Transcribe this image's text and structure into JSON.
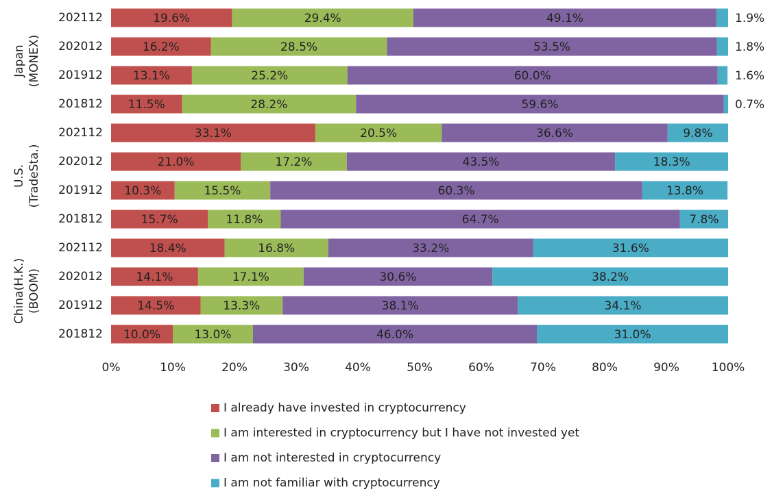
{
  "chart_data": {
    "type": "stacked_bar_horizontal",
    "groups": [
      [
        "Japan",
        "(MONEX)"
      ],
      [
        "U.S.",
        "(TradeSta.)"
      ],
      [
        "China(H.K.)",
        "(BOOM)"
      ]
    ],
    "categories": [
      "202112",
      "202012",
      "201912",
      "201812",
      "202112",
      "202012",
      "201912",
      "201812",
      "202112",
      "202012",
      "201912",
      "201812"
    ],
    "series": [
      {
        "name": "I already have invested in cryptocurrency",
        "color": "#c0504d",
        "values": [
          19.6,
          16.2,
          13.1,
          11.5,
          33.1,
          21.0,
          10.3,
          15.7,
          18.4,
          14.1,
          14.5,
          10.0
        ],
        "value_labels": [
          "19.6%",
          "16.2%",
          "13.1%",
          "11.5%",
          "33.1%",
          "21.0%",
          "10.3%",
          "15.7%",
          "18.4%",
          "14.1%",
          "14.5%",
          "10.0%"
        ]
      },
      {
        "name": "I am interested in cryptocurrency but I have not invested yet",
        "color": "#9bbb59",
        "values": [
          29.4,
          28.5,
          25.2,
          28.2,
          20.5,
          17.2,
          15.5,
          11.8,
          16.8,
          17.1,
          13.3,
          13.0
        ],
        "value_labels": [
          "29.4%",
          "28.5%",
          "25.2%",
          "28.2%",
          "20.5%",
          "17.2%",
          "15.5%",
          "11.8%",
          "16.8%",
          "17.1%",
          "13.3%",
          "13.0%"
        ]
      },
      {
        "name": "I am not interested in cryptocurrency",
        "color": "#8064a2",
        "values": [
          49.1,
          53.5,
          60.0,
          59.6,
          36.6,
          43.5,
          60.3,
          64.7,
          33.2,
          30.6,
          38.1,
          46.0
        ],
        "value_labels": [
          "49.1%",
          "53.5%",
          "60.0%",
          "59.6%",
          "36.6%",
          "43.5%",
          "60.3%",
          "64.7%",
          "33.2%",
          "30.6%",
          "38.1%",
          "46.0%"
        ]
      },
      {
        "name": "I am not familiar with cryptocurrency",
        "color": "#4bacc6",
        "values": [
          1.9,
          1.8,
          1.6,
          0.7,
          9.8,
          18.3,
          13.8,
          7.8,
          31.6,
          38.2,
          34.1,
          31.0
        ],
        "value_labels": [
          "1.9%",
          "1.8%",
          "1.6%",
          "0.7%",
          "9.8%",
          "18.3%",
          "13.8%",
          "7.8%",
          "31.6%",
          "38.2%",
          "34.1%",
          "31.0%"
        ]
      }
    ],
    "xlim": [
      0,
      100
    ],
    "xticks": [
      {
        "value": 0,
        "label": "0%"
      },
      {
        "value": 10,
        "label": "10%"
      },
      {
        "value": 20,
        "label": "20%"
      },
      {
        "value": 30,
        "label": "30%"
      },
      {
        "value": 40,
        "label": "40%"
      },
      {
        "value": 50,
        "label": "50%"
      },
      {
        "value": 60,
        "label": "60%"
      },
      {
        "value": 70,
        "label": "70%"
      },
      {
        "value": 80,
        "label": "80%"
      },
      {
        "value": 90,
        "label": "90%"
      },
      {
        "value": 100,
        "label": "100%"
      }
    ],
    "legend": "bottom"
  }
}
